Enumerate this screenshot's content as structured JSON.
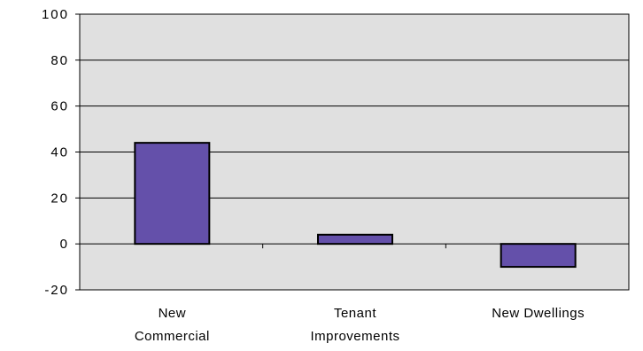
{
  "chart_data": {
    "type": "bar",
    "categories": [
      [
        "New",
        "Commercial"
      ],
      [
        "Tenant",
        "Improvements"
      ],
      [
        "New Dwellings"
      ]
    ],
    "values": [
      44,
      4,
      -10
    ],
    "title": "",
    "xlabel": "",
    "ylabel": "",
    "ylim": [
      -20,
      100
    ],
    "yticks": [
      100,
      80,
      60,
      40,
      20,
      0,
      -20
    ],
    "ytick_labels": [
      "100",
      "80",
      "60",
      "40",
      "20",
      "0",
      "-20"
    ],
    "grid": true,
    "colors": {
      "bar_fill": "#6450AA",
      "bar_stroke": "#000000",
      "plot_background": "#E0E0E0",
      "gridline": "#000000"
    }
  }
}
